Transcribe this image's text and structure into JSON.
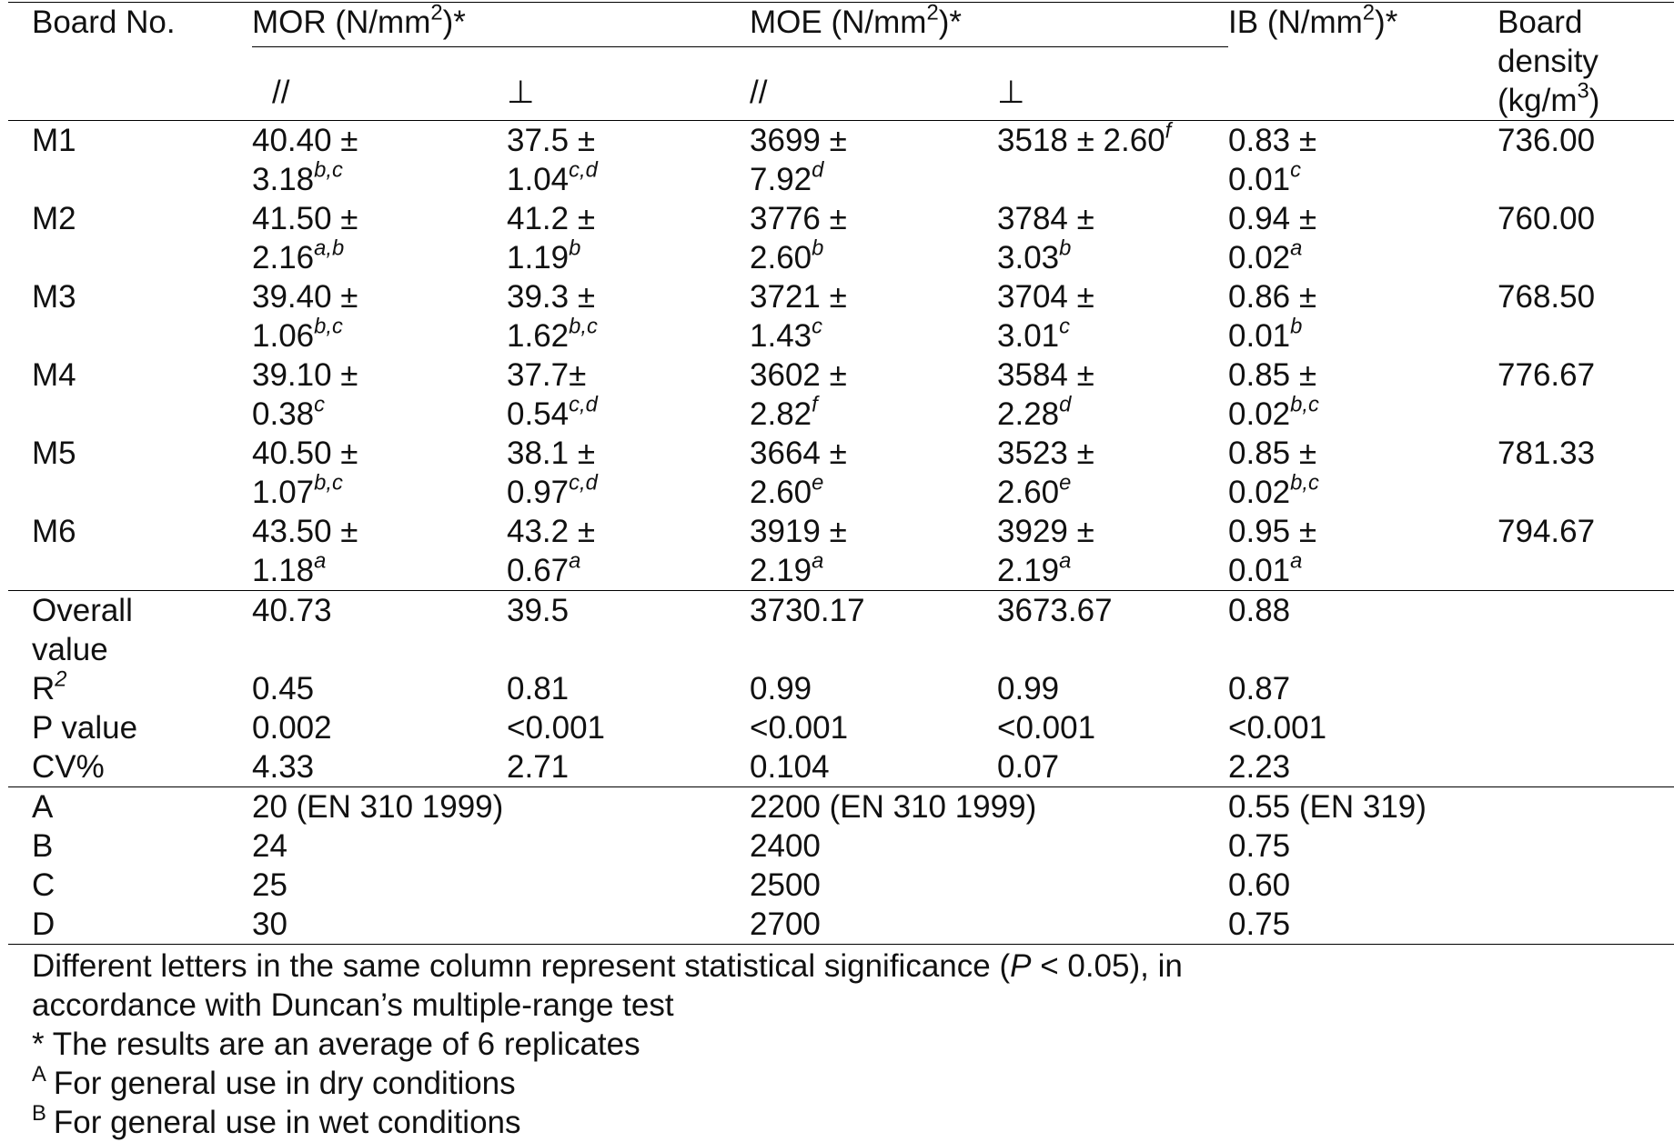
{
  "table": {
    "header": {
      "board": "Board No.",
      "mor": {
        "text": "MOR (N/mm",
        "sup": "2",
        "post": ")*"
      },
      "moe": {
        "text": "MOE (N/mm",
        "sup": "2",
        "post": ")*"
      },
      "ib": {
        "text": "IB (N/mm",
        "sup": "2",
        "post": ")*"
      },
      "density": {
        "text": "Board\ndensity\n(kg/m",
        "sup": "3",
        "post": ")"
      },
      "sub": [
        "//",
        "⊥",
        "//",
        "⊥"
      ]
    },
    "rows": [
      [
        "M1",
        {
          "text": "40.40 ±\n3.18",
          "sup": "b,c"
        },
        {
          "text": "37.5 ±\n1.04",
          "sup": "c,d"
        },
        {
          "text": "3699 ±\n7.92",
          "sup": "d"
        },
        {
          "text": "3518 ± 2.60",
          "sup": "f"
        },
        {
          "text": "0.83 ±\n0.01",
          "sup": "c"
        },
        "736.00"
      ],
      [
        "M2",
        {
          "text": "41.50 ±\n2.16",
          "sup": "a,b"
        },
        {
          "text": "41.2 ±\n1.19",
          "sup": "b"
        },
        {
          "text": "3776 ±\n2.60",
          "sup": "b"
        },
        {
          "text": "3784 ±\n3.03",
          "sup": "b"
        },
        {
          "text": "0.94 ±\n0.02",
          "sup": "a"
        },
        "760.00"
      ],
      [
        "M3",
        {
          "text": "39.40 ±\n1.06",
          "sup": "b,c"
        },
        {
          "text": "39.3 ±\n1.62",
          "sup": "b,c"
        },
        {
          "text": "3721 ±\n1.43",
          "sup": "c"
        },
        {
          "text": "3704 ±\n3.01",
          "sup": "c"
        },
        {
          "text": "0.86 ±\n0.01",
          "sup": "b"
        },
        "768.50"
      ],
      [
        "M4",
        {
          "text": "39.10 ±\n0.38",
          "sup": "c"
        },
        {
          "text": "37.7±\n0.54",
          "sup": "c,d"
        },
        {
          "text": "3602 ±\n2.82",
          "sup": "f"
        },
        {
          "text": "3584 ±\n2.28",
          "sup": "d"
        },
        {
          "text": "0.85 ±\n0.02",
          "sup": "b,c"
        },
        "776.67"
      ],
      [
        "M5",
        {
          "text": "40.50 ±\n1.07",
          "sup": "b,c"
        },
        {
          "text": "38.1 ±\n0.97",
          "sup": "c,d"
        },
        {
          "text": "3664 ±\n2.60",
          "sup": "e"
        },
        {
          "text": "3523 ±\n2.60",
          "sup": "e"
        },
        {
          "text": "0.85 ±\n0.02",
          "sup": "b,c"
        },
        "781.33"
      ],
      [
        "M6",
        {
          "text": "43.50 ±\n1.18",
          "sup": "a"
        },
        {
          "text": "43.2 ±\n0.67",
          "sup": "a"
        },
        {
          "text": "3919 ±\n2.19",
          "sup": "a"
        },
        {
          "text": "3929 ±\n2.19",
          "sup": "a"
        },
        {
          "text": "0.95 ±\n0.01",
          "sup": "a"
        },
        "794.67"
      ]
    ],
    "summary": [
      [
        "Overall\nvalue",
        "40.73",
        "39.5",
        "3730.17",
        "3673.67",
        "0.88"
      ],
      [
        {
          "text": "R",
          "sup": "2"
        },
        "0.45",
        "0.81",
        "0.99",
        "0.99",
        "0.87"
      ],
      [
        "P value",
        "0.002",
        "<0.001",
        "<0.001",
        "<0.001",
        "<0.001"
      ],
      [
        "CV%",
        "4.33",
        "2.71",
        "0.104",
        "0.07",
        "2.23"
      ]
    ],
    "standards": [
      [
        "A",
        "20 (EN 310 1999)",
        "2200 (EN 310 1999)",
        "0.55 (EN 319)"
      ],
      [
        "B",
        "24",
        "2400",
        "0.75"
      ],
      [
        "C",
        "25",
        "2500",
        "0.60"
      ],
      [
        "D",
        "30",
        "2700",
        "0.75"
      ]
    ]
  },
  "notes": [
    {
      "text": "Different letters in the same column represent statistical significance (",
      "italic": "P",
      "post": " < 0.05), in accordance with Duncan’s multiple-range test"
    },
    {
      "text": "* The results are an average of 6 replicates"
    },
    {
      "mark": "A",
      "text": "For general use in dry conditions"
    },
    {
      "mark": "B",
      "text": "For general use in wet conditions"
    }
  ]
}
